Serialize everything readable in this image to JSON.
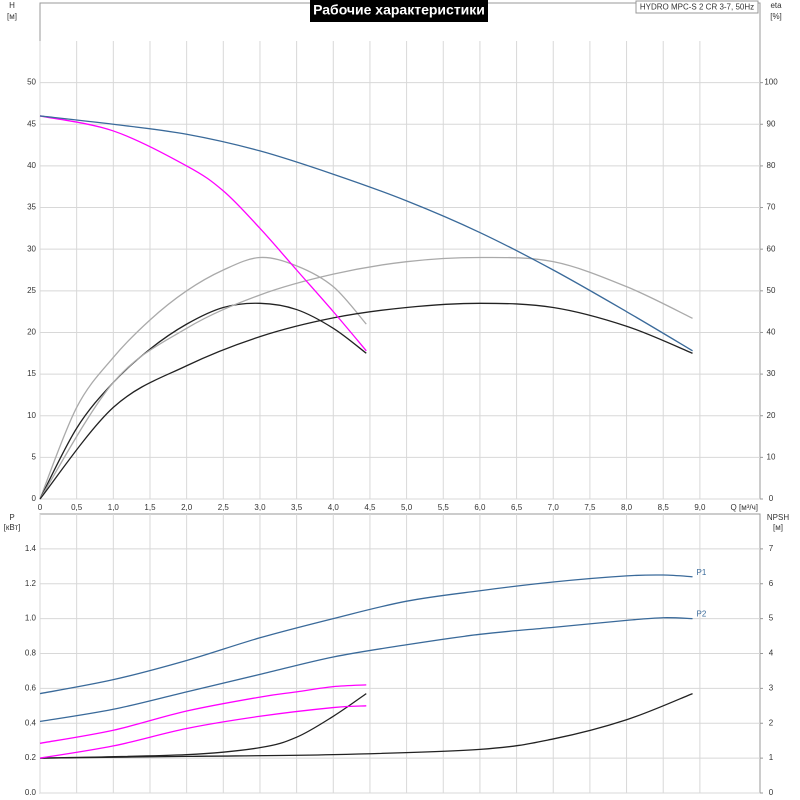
{
  "chart_data": [
    {
      "type": "line",
      "title": "Рабочие характеристики",
      "subtitle": "HYDRO MPC-S 2 CR 3-7, 50Hz",
      "y_label": "H",
      "y_unit": "[м]",
      "y2_label": "eta",
      "y2_unit": "[%]",
      "x_label": "Q [м³/ч]",
      "xlim": [
        0,
        9.82
      ],
      "ylim": [
        0,
        55
      ],
      "y2lim": [
        0,
        110
      ],
      "grid": true,
      "xticks": [
        0,
        {
          "value": 0.5,
          "label": "0,5"
        },
        {
          "value": 1,
          "label": "1,0"
        },
        {
          "value": 1.5,
          "label": "1,5"
        },
        {
          "value": 2,
          "label": "2,0"
        },
        {
          "value": 2.5,
          "label": "2,5"
        },
        {
          "value": 3,
          "label": "3,0"
        },
        {
          "value": 3.5,
          "label": "3,5"
        },
        {
          "value": 4,
          "label": "4,0"
        },
        {
          "value": 4.5,
          "label": "4,5"
        },
        {
          "value": 5,
          "label": "5,0"
        },
        {
          "value": 5.5,
          "label": "5,5"
        },
        {
          "value": 6,
          "label": "6,0"
        },
        {
          "value": 6.5,
          "label": "6,5"
        },
        {
          "value": 7,
          "label": "7,0"
        },
        {
          "value": 7.5,
          "label": "7,5"
        },
        {
          "value": 8,
          "label": "8,0"
        },
        {
          "value": 8.5,
          "label": "8,5"
        },
        {
          "value": 9,
          "label": "9,0"
        }
      ],
      "yticks": [
        0,
        5,
        10,
        15,
        20,
        25,
        30,
        35,
        40,
        45,
        50
      ],
      "y2ticks": [
        0,
        10,
        20,
        30,
        40,
        50,
        60,
        70,
        80,
        90,
        100
      ],
      "series": [
        {
          "color": "#aaaaaa",
          "axis": "y2",
          "x": [
            0,
            0.5,
            1,
            1.5,
            2,
            2.5,
            3,
            3.5,
            4,
            4.45
          ],
          "values": [
            0,
            22,
            34,
            43,
            50,
            55,
            58,
            56,
            51,
            42
          ]
        },
        {
          "color": "#222222",
          "axis": "y2",
          "x": [
            0,
            0.5,
            1,
            1.5,
            2,
            2.5,
            3,
            3.5,
            4,
            4.45
          ],
          "values": [
            0,
            17,
            28,
            36,
            42,
            46,
            47,
            45.5,
            41,
            35
          ]
        },
        {
          "color": "#aaaaaa",
          "axis": "y2",
          "x": [
            0,
            1,
            2,
            3,
            4,
            5,
            6,
            7,
            8,
            8.9
          ],
          "values": [
            0,
            28,
            41,
            49,
            54,
            57,
            58,
            57,
            51,
            43.4
          ]
        },
        {
          "color": "#222222",
          "axis": "y2",
          "x": [
            0,
            1,
            2,
            3,
            4,
            5,
            6,
            7,
            8,
            8.9
          ],
          "values": [
            0,
            22,
            32,
            39,
            43.5,
            46,
            47,
            46,
            41.5,
            35
          ]
        },
        {
          "color": "#ff00ff",
          "x": [
            0,
            1,
            2,
            2.5,
            3,
            3.5,
            4,
            4.45
          ],
          "values": [
            46,
            44.2,
            40,
            37,
            32.5,
            27.5,
            22.5,
            17.8
          ]
        },
        {
          "color": "#3a6a9a",
          "x": [
            0,
            1,
            2,
            3,
            4,
            5,
            6,
            7,
            8,
            8.9
          ],
          "values": [
            46,
            45,
            43.8,
            41.8,
            39,
            35.8,
            32,
            27.5,
            22.5,
            17.8
          ]
        }
      ]
    },
    {
      "type": "line",
      "y_label": "P",
      "y_unit": "[кВт]",
      "y2_label": "NPSH",
      "y2_unit": "[м]",
      "xlim": [
        0,
        9.82
      ],
      "ylim": [
        0,
        1.6
      ],
      "y2lim": [
        0,
        8
      ],
      "grid": true,
      "xticks": [
        0,
        0.5,
        1,
        1.5,
        2,
        2.5,
        3,
        3.5,
        4,
        4.5,
        5,
        5.5,
        6,
        6.5,
        7,
        7.5,
        8,
        8.5,
        9
      ],
      "yticks": [
        {
          "value": 0,
          "label": "0.0"
        },
        0.2,
        0.4,
        0.6,
        0.8,
        {
          "value": 1,
          "label": "1.0"
        },
        1.2,
        1.4
      ],
      "y2ticks": [
        0,
        1,
        2,
        3,
        4,
        5,
        6,
        7
      ],
      "series": [
        {
          "color": "#222222",
          "axis": "y2",
          "x": [
            0,
            2,
            3,
            3.5,
            4,
            4.45
          ],
          "values": [
            1.0,
            1.1,
            1.3,
            1.6,
            2.2,
            2.85
          ]
        },
        {
          "color": "#222222",
          "axis": "y2",
          "x": [
            0,
            2,
            4,
            6,
            7,
            8,
            8.9
          ],
          "values": [
            1.0,
            1.05,
            1.1,
            1.25,
            1.55,
            2.1,
            2.85
          ]
        },
        {
          "color": "#ff00ff",
          "x": [
            0,
            1,
            2,
            3,
            4,
            4.45
          ],
          "values": [
            0.2,
            0.27,
            0.37,
            0.44,
            0.49,
            0.5
          ]
        },
        {
          "color": "#ff00ff",
          "x": [
            0,
            1,
            2,
            3,
            3.5,
            4,
            4.45
          ],
          "values": [
            0.285,
            0.36,
            0.47,
            0.55,
            0.58,
            0.61,
            0.62
          ]
        },
        {
          "name": "P2",
          "color": "#3a6a9a",
          "x": [
            0,
            1,
            2,
            3,
            4,
            5,
            6,
            7,
            8,
            8.5,
            8.9
          ],
          "values": [
            0.41,
            0.48,
            0.58,
            0.68,
            0.78,
            0.85,
            0.91,
            0.95,
            0.99,
            1.005,
            1.0
          ]
        },
        {
          "name": "P1",
          "color": "#3a6a9a",
          "x": [
            0,
            1,
            2,
            3,
            4,
            5,
            6,
            7,
            8,
            8.5,
            8.9
          ],
          "values": [
            0.57,
            0.65,
            0.76,
            0.89,
            1.0,
            1.1,
            1.16,
            1.21,
            1.245,
            1.25,
            1.24
          ]
        }
      ]
    }
  ]
}
